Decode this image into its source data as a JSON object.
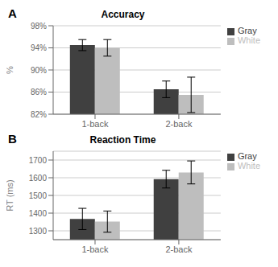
{
  "chart_data": [
    {
      "type": "bar",
      "title": "Accuracy",
      "annotation": "A",
      "ylabel": "%",
      "categories": [
        "1-back",
        "2-back"
      ],
      "series": [
        {
          "name": "Gray",
          "color": "#404040",
          "values": [
            94.5,
            86.5
          ],
          "errors": [
            1.0,
            1.5
          ]
        },
        {
          "name": "White",
          "color": "#bebebe",
          "values": [
            94.0,
            85.5
          ],
          "errors": [
            1.5,
            3.2
          ]
        }
      ],
      "ylim": [
        82,
        98
      ],
      "yticks": [
        {
          "value": 82,
          "label": "82%"
        },
        {
          "value": 86,
          "label": "86%"
        },
        {
          "value": 90,
          "label": "90%"
        },
        {
          "value": 94,
          "label": "94%"
        },
        {
          "value": 98,
          "label": "98%"
        }
      ],
      "grid": true,
      "legend": "right"
    },
    {
      "type": "bar",
      "title": "Reaction Time",
      "annotation": "B",
      "ylabel": "RT (ms)",
      "categories": [
        "1-back",
        "2-back"
      ],
      "series": [
        {
          "name": "Gray",
          "color": "#404040",
          "values": [
            1367,
            1592
          ],
          "errors": [
            60,
            50
          ]
        },
        {
          "name": "White",
          "color": "#bebebe",
          "values": [
            1352,
            1630
          ],
          "errors": [
            60,
            65
          ]
        }
      ],
      "ylim": [
        1250,
        1750
      ],
      "yticks": [
        1300,
        1400,
        1500,
        1600,
        1700
      ],
      "grid": true,
      "legend": "right"
    }
  ]
}
